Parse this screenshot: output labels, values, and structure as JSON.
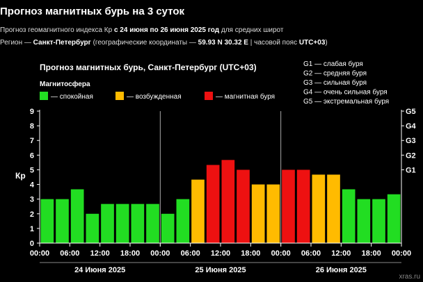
{
  "header": {
    "title": "Прогноз магнитных бурь на 3 суток",
    "line1_pre": "Прогноз геомагнитного индекса Кр",
    "line1_dates": "с 24 июня по 26 июня 2025 год",
    "line1_post": "для средних широт",
    "line2_pre": "Регион —",
    "line2_city": "Санкт-Петербург",
    "line2_mid": "(географические координаты —",
    "line2_coords": "59.93 N 30.32 E",
    "line2_tz_pre": "| часовой пояс",
    "line2_tz": "UTC+03",
    "line2_end": ")"
  },
  "colors": {
    "background": "#000000",
    "calm": "#22dd22",
    "excited": "#ffbb00",
    "storm": "#ee1111",
    "grid": "#aaaaaa"
  },
  "chart_data": {
    "type": "bar",
    "title": "Прогноз магнитных бурь, Санкт-Петербург (UTC+03)",
    "ylabel": "Кр",
    "ylim": [
      0,
      9
    ],
    "yticks": [
      "0",
      "1",
      "2",
      "3",
      "4",
      "5",
      "6",
      "7",
      "8",
      "9"
    ],
    "gscale": [
      {
        "label": "G1",
        "kp": 5
      },
      {
        "label": "G2",
        "kp": 6
      },
      {
        "label": "G3",
        "kp": 7
      },
      {
        "label": "G4",
        "kp": 8
      },
      {
        "label": "G5",
        "kp": 9
      }
    ],
    "legend_title": "Магнитосфера",
    "legend": [
      {
        "label": "— спокойная",
        "color": "#22dd22"
      },
      {
        "label": "— возбужденная",
        "color": "#ffbb00"
      },
      {
        "label": "— магнитная буря",
        "color": "#ee1111"
      }
    ],
    "g_legend": [
      "G1 — слабая буря",
      "G2 — средняя буря",
      "G3 — сильная буря",
      "G4 — очень сильная буря",
      "G5 — экстремальная буря"
    ],
    "xticks": [
      "00:00",
      "06:00",
      "12:00",
      "18:00",
      "00:00",
      "06:00",
      "12:00",
      "18:00",
      "00:00",
      "06:00",
      "12:00",
      "18:00",
      "00:00"
    ],
    "days": [
      "24 Июня 2025",
      "25 Июня 2025",
      "26 Июня 2025"
    ],
    "values": [
      3.0,
      3.0,
      3.67,
      2.0,
      2.67,
      2.67,
      2.67,
      2.67,
      2.0,
      3.0,
      4.33,
      5.33,
      5.67,
      5.0,
      4.0,
      4.0,
      5.0,
      5.0,
      4.67,
      4.67,
      3.67,
      3.0,
      3.0,
      3.33
    ],
    "watermark": "xras.ru"
  }
}
